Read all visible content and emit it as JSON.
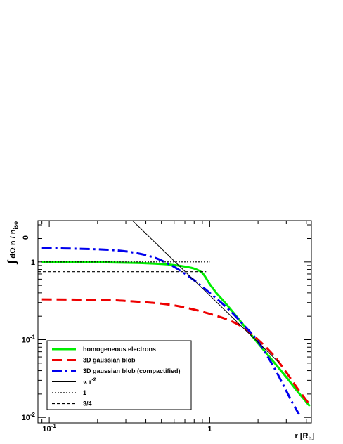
{
  "chart_data": {
    "type": "line",
    "x_scale": "log",
    "y_scale": "log",
    "xlim": [
      0.085,
      4.3
    ],
    "ylim": [
      0.0085,
      3.4
    ],
    "x_ticks": [
      {
        "value": 0.1,
        "label": "10",
        "exp": "-1"
      },
      {
        "value": 1,
        "label": "1",
        "exp": ""
      }
    ],
    "y_ticks": [
      {
        "value": 1,
        "label": "1",
        "exp": ""
      },
      {
        "value": 0.1,
        "label": "10",
        "exp": "-1"
      },
      {
        "value": 0.01,
        "label": "10",
        "exp": "-2"
      }
    ],
    "xlabel": {
      "main": "r [R",
      "sub": "b",
      "tail": "]"
    },
    "ylabel": {
      "integral": "∫",
      "lower_limit": "0",
      "body": "dΩ n  / n",
      "sub": "iso"
    },
    "legend": {
      "placement": "bottom-left",
      "entries": [
        {
          "label": "homogeneous electrons",
          "series": "homogeneous"
        },
        {
          "label": "3D gaussian blob",
          "series": "gaussian"
        },
        {
          "label": "3D gaussian blob (compactified)",
          "series": "compactified"
        },
        {
          "label": "∝ r",
          "sup": "-2",
          "series": "power"
        },
        {
          "label": "1",
          "series": "one"
        },
        {
          "label": "3/4",
          "series": "threequarter"
        }
      ]
    },
    "series": [
      {
        "id": "homogeneous",
        "color": "#00ee00",
        "style": "solid",
        "x": [
          0.09,
          0.2,
          0.35,
          0.5,
          0.6,
          0.7,
          0.8,
          0.9,
          1.0,
          1.1,
          1.3,
          1.6,
          2.0,
          2.5,
          3.0,
          3.5,
          4.2
        ],
        "y": [
          1.0,
          0.99,
          0.97,
          0.94,
          0.91,
          0.87,
          0.82,
          0.72,
          0.52,
          0.4,
          0.27,
          0.16,
          0.09,
          0.052,
          0.033,
          0.022,
          0.014
        ]
      },
      {
        "id": "gaussian",
        "color": "#ee0000",
        "style": "dashed",
        "x": [
          0.09,
          0.2,
          0.3,
          0.5,
          0.7,
          1.0,
          1.3,
          1.6,
          2.0,
          2.5,
          3.0,
          3.5,
          4.2
        ],
        "y": [
          0.33,
          0.325,
          0.315,
          0.29,
          0.26,
          0.215,
          0.18,
          0.145,
          0.1,
          0.063,
          0.038,
          0.024,
          0.0145
        ]
      },
      {
        "id": "compactified",
        "color": "#0000ee",
        "style": "dashdot",
        "x": [
          0.09,
          0.15,
          0.25,
          0.35,
          0.45,
          0.55,
          0.65,
          0.8,
          1.0,
          1.3,
          1.6,
          2.0,
          2.5,
          3.0,
          3.3,
          3.6
        ],
        "y": [
          1.5,
          1.48,
          1.42,
          1.3,
          1.14,
          0.95,
          0.78,
          0.58,
          0.4,
          0.25,
          0.16,
          0.095,
          0.045,
          0.022,
          0.015,
          0.011
        ]
      },
      {
        "id": "power",
        "color": "#000000",
        "style": "solid",
        "width": 1,
        "x": [
          0.33,
          2.7
        ],
        "y": [
          3.4,
          0.0508
        ]
      },
      {
        "id": "one",
        "color": "#000000",
        "style": "dotted",
        "width": 1.2,
        "x": [
          0.085,
          1.0
        ],
        "y": [
          1.0,
          1.0
        ]
      },
      {
        "id": "threequarter",
        "color": "#000000",
        "style": "shortdash",
        "width": 1.2,
        "x": [
          0.085,
          0.95
        ],
        "y": [
          0.75,
          0.75
        ]
      }
    ]
  }
}
